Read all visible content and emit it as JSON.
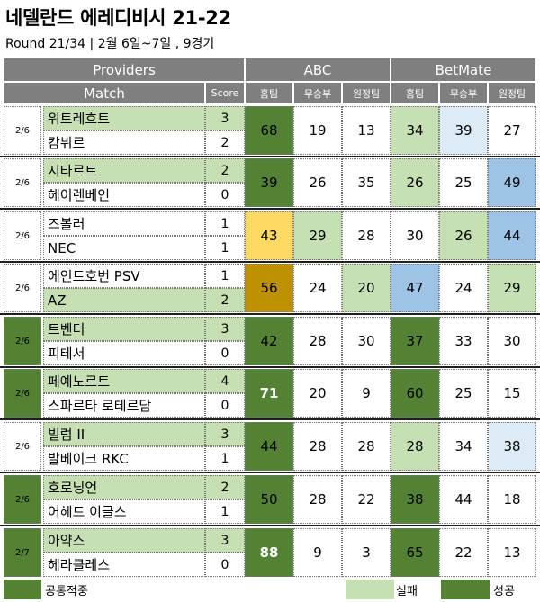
{
  "title": "네델란드 에레디비시 21-22",
  "subtitle": "Round 21/34 | 2월 6일~7일 , 9경기",
  "header": {
    "providers": "Providers",
    "match": "Match",
    "score": "Score",
    "abc": "ABC",
    "betmate": "BetMate",
    "home": "홈팀",
    "draw": "무승부",
    "away": "원정팀"
  },
  "colors": {
    "success": "#548235",
    "fail": "#c6e0b4",
    "common": "#548235",
    "yellow": "#ffd966",
    "gold": "#bf9000",
    "blue": "#9dc3e6",
    "lightblue": "#ddebf7",
    "header": "#7f7f7f"
  },
  "matches": [
    {
      "date": "2/6",
      "home": "위트레흐트",
      "away": "캄뷔르",
      "home_score": "3",
      "away_score": "2",
      "abc": [
        "68",
        "19",
        "13"
      ],
      "betmate": [
        "34",
        "39",
        "27"
      ]
    },
    {
      "date": "2/6",
      "home": "시타르트",
      "away": "헤이렌베인",
      "home_score": "2",
      "away_score": "0",
      "abc": [
        "39",
        "26",
        "35"
      ],
      "betmate": [
        "26",
        "25",
        "49"
      ]
    },
    {
      "date": "2/6",
      "home": "즈볼러",
      "away": "NEC",
      "home_score": "1",
      "away_score": "1",
      "abc": [
        "43",
        "29",
        "28"
      ],
      "betmate": [
        "30",
        "26",
        "44"
      ]
    },
    {
      "date": "2/6",
      "home": "에인트호번 PSV",
      "away": "AZ",
      "home_score": "1",
      "away_score": "2",
      "abc": [
        "56",
        "24",
        "20"
      ],
      "betmate": [
        "47",
        "24",
        "29"
      ]
    },
    {
      "date": "2/6",
      "home": "트벤터",
      "away": "피테서",
      "home_score": "3",
      "away_score": "0",
      "abc": [
        "42",
        "28",
        "30"
      ],
      "betmate": [
        "37",
        "33",
        "30"
      ]
    },
    {
      "date": "2/6",
      "home": "페예노르트",
      "away": "스파르타 로테르담",
      "home_score": "4",
      "away_score": "0",
      "abc": [
        "71",
        "20",
        "9"
      ],
      "betmate": [
        "60",
        "25",
        "15"
      ]
    },
    {
      "date": "2/6",
      "home": "빌럼 II",
      "away": "발베이크 RKC",
      "home_score": "3",
      "away_score": "1",
      "abc": [
        "44",
        "28",
        "28"
      ],
      "betmate": [
        "28",
        "34",
        "38"
      ]
    },
    {
      "date": "2/6",
      "home": "호로닝언",
      "away": "어헤드 이글스",
      "home_score": "2",
      "away_score": "1",
      "abc": [
        "50",
        "28",
        "22"
      ],
      "betmate": [
        "38",
        "44",
        "18"
      ]
    },
    {
      "date": "2/7",
      "home": "아약스",
      "away": "헤라클레스",
      "home_score": "3",
      "away_score": "0",
      "abc": [
        "88",
        "9",
        "3"
      ],
      "betmate": [
        "65",
        "22",
        "13"
      ]
    }
  ],
  "legend": {
    "common": "공통적중",
    "fail": "실패",
    "success": "성공"
  }
}
